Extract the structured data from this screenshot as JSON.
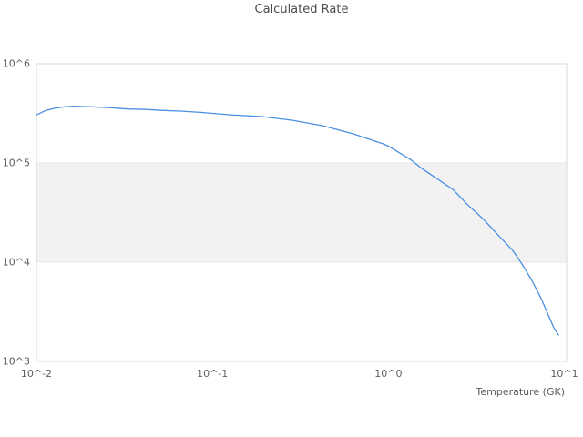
{
  "title": "Calculated Rate",
  "axes": {
    "x_label": "Temperature (GK)"
  },
  "colors": {
    "line": "#4a90e2",
    "band_fill": "#f2f2f2",
    "band_edge": "#e7e7e7",
    "border": "#d9d9d9",
    "background": "#ffffff",
    "tick_text": "#5f5f5f",
    "title_text": "#4c4c4c"
  },
  "chart_data": {
    "type": "line",
    "title": "Calculated Rate",
    "xlabel": "Temperature (GK)",
    "ylabel": "",
    "x_scale": "log",
    "y_scale": "log",
    "xlim": [
      0.01,
      10.3
    ],
    "ylim": [
      1000,
      1000000
    ],
    "grid": "horizontal-band-only",
    "legend": "none",
    "x_ticks": [
      {
        "value": 0.01,
        "label": "10^-2"
      },
      {
        "value": 0.1,
        "label": "10^-1"
      },
      {
        "value": 1,
        "label": "10^0"
      },
      {
        "value": 10,
        "label": "10^1"
      }
    ],
    "y_ticks": [
      {
        "value": 1000,
        "label": "10^3"
      },
      {
        "value": 10000,
        "label": "10^4"
      },
      {
        "value": 100000,
        "label": "10^5"
      },
      {
        "value": 1000000,
        "label": "10^6"
      }
    ],
    "shaded_band": {
      "y_min": 10000,
      "y_max": 100000
    },
    "series": [
      {
        "name": "Calculated Rate",
        "points": [
          [
            0.01,
            305000
          ],
          [
            0.0113,
            338000
          ],
          [
            0.0128,
            357000
          ],
          [
            0.0144,
            368000
          ],
          [
            0.0162,
            373000
          ],
          [
            0.0206,
            368000
          ],
          [
            0.0261,
            361000
          ],
          [
            0.0331,
            350000
          ],
          [
            0.042,
            346000
          ],
          [
            0.0532,
            338000
          ],
          [
            0.0675,
            333000
          ],
          [
            0.0856,
            324000
          ],
          [
            0.1,
            316000
          ],
          [
            0.127,
            306000
          ],
          [
            0.191,
            294000
          ],
          [
            0.283,
            270000
          ],
          [
            0.421,
            238000
          ],
          [
            0.629,
            197000
          ],
          [
            0.93,
            156000
          ],
          [
            1.0,
            148000
          ],
          [
            1.33,
            109000
          ],
          [
            1.55,
            88000
          ],
          [
            1.9,
            69000
          ],
          [
            2.33,
            54000
          ],
          [
            2.82,
            38000
          ],
          [
            3.44,
            27500
          ],
          [
            4.2,
            18800
          ],
          [
            5.08,
            13200
          ],
          [
            5.74,
            9600
          ],
          [
            6.49,
            6700
          ],
          [
            7.34,
            4400
          ],
          [
            8.0,
            3100
          ],
          [
            8.7,
            2200
          ],
          [
            9.26,
            1850
          ]
        ]
      }
    ]
  }
}
